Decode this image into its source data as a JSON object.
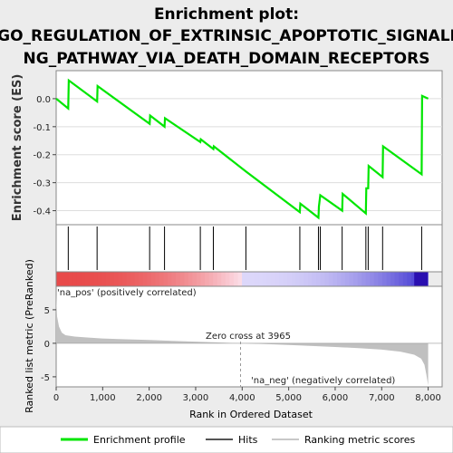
{
  "title_lines": [
    "Enrichment plot:",
    "GO_REGULATION_OF_EXTRINSIC_APOPTOTIC_SIGNALI",
    "NG_PATHWAY_VIA_DEATH_DOMAIN_RECEPTORS"
  ],
  "colors": {
    "es_line": "#00e600",
    "hits": "#000000",
    "pos_band": "#e84a4a",
    "neg_band": "#3a2fd0",
    "metric_fill": "#c0c0c0",
    "pos_label": "#d02020",
    "neg_label": "#2020c0"
  },
  "chart_data": [
    {
      "type": "line",
      "name": "enrichment-profile",
      "ylabel": "Enrichment score (ES)",
      "xlim": [
        0,
        8300
      ],
      "ylim": [
        -0.45,
        0.1
      ],
      "yticks": [
        0.0,
        -0.1,
        -0.2,
        -0.3,
        -0.4
      ],
      "ytick_labels": [
        "0.0",
        "-0.1",
        "-0.2",
        "-0.3",
        "-0.4"
      ],
      "grid": true,
      "x": [
        0,
        260,
        270,
        880,
        890,
        2010,
        2020,
        2330,
        2340,
        3100,
        3110,
        3380,
        3390,
        4080,
        5240,
        5250,
        5640,
        5650,
        5680,
        6150,
        6160,
        6660,
        6670,
        6710,
        6720,
        7020,
        7030,
        7860,
        7870,
        8000
      ],
      "y": [
        0.0,
        -0.035,
        0.065,
        -0.01,
        0.045,
        -0.09,
        -0.06,
        -0.1,
        -0.07,
        -0.155,
        -0.145,
        -0.18,
        -0.17,
        -0.26,
        -0.405,
        -0.375,
        -0.425,
        -0.385,
        -0.345,
        -0.4,
        -0.34,
        -0.41,
        -0.32,
        -0.32,
        -0.24,
        -0.28,
        -0.17,
        -0.27,
        0.01,
        0.0
      ]
    },
    {
      "type": "scatter",
      "name": "hits",
      "x": [
        260,
        880,
        2010,
        2330,
        3100,
        3380,
        4080,
        5240,
        5640,
        5680,
        6150,
        6660,
        6710,
        7020,
        7860
      ]
    },
    {
      "type": "area",
      "name": "ranked-metric",
      "xlabel": "Rank in Ordered Dataset",
      "ylabel": "Ranked list metric (PreRanked)",
      "xlim": [
        0,
        8300
      ],
      "ylim": [
        -6.5,
        8.5
      ],
      "xticks": [
        0,
        1000,
        2000,
        3000,
        4000,
        5000,
        6000,
        7000,
        8000
      ],
      "xtick_labels": [
        "0",
        "1,000",
        "2,000",
        "3,000",
        "4,000",
        "5,000",
        "6,000",
        "7,000",
        "8,000"
      ],
      "yticks": [
        5,
        0,
        -5
      ],
      "ytick_labels": [
        "5",
        "0",
        "-5"
      ],
      "x": [
        0,
        20,
        60,
        120,
        200,
        400,
        700,
        1000,
        1500,
        2000,
        2500,
        3000,
        3500,
        3965,
        4500,
        5000,
        5500,
        6000,
        6500,
        7000,
        7400,
        7700,
        7850,
        7920,
        7960,
        8000
      ],
      "y": [
        7.2,
        4.0,
        2.5,
        1.6,
        1.2,
        1.0,
        0.85,
        0.72,
        0.6,
        0.48,
        0.36,
        0.24,
        0.12,
        0.0,
        -0.12,
        -0.26,
        -0.4,
        -0.55,
        -0.72,
        -0.95,
        -1.25,
        -1.7,
        -2.3,
        -3.2,
        -4.6,
        -6.3
      ],
      "zero_cross": 3965,
      "annotations": {
        "zero_cross_text": "Zero cross at 3965",
        "pos_text": "'na_pos' (positively correlated)",
        "neg_text": "'na_neg' (negatively correlated)"
      }
    }
  ],
  "legend": [
    {
      "label": "Enrichment profile",
      "color": "#00e600",
      "kind": "thick-line"
    },
    {
      "label": "Hits",
      "color": "#555555",
      "kind": "line"
    },
    {
      "label": "Ranking metric scores",
      "color": "#c8c8c8",
      "kind": "line"
    }
  ]
}
